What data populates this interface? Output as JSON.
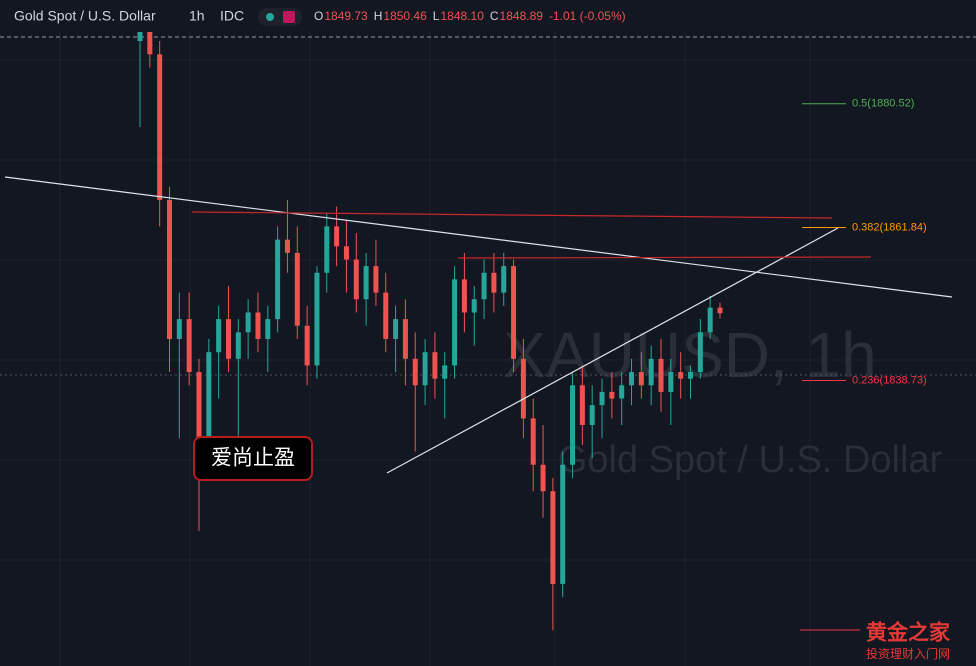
{
  "header": {
    "symbol": "Gold Spot / U.S. Dollar",
    "interval": "1h",
    "source": "IDC",
    "ohlc_labels": [
      "O",
      "H",
      "L",
      "C"
    ],
    "ohlc_values": [
      "1849.73",
      "1850.46",
      "1848.10",
      "1848.89"
    ],
    "change": "-1.01 (-0.05%)"
  },
  "watermark": {
    "ticker": "XAUUSD, 1h",
    "description": "Gold Spot / U.S. Dollar"
  },
  "annotation": "爱尚止盈",
  "logo": {
    "title": "黄金之家",
    "subtitle": "投资理财入门网"
  },
  "chart_data": {
    "type": "candlestick",
    "ylim": [
      1795.6,
      1896.2
    ],
    "up_color": "#26a69a",
    "down_color": "#ef5350",
    "candles": [
      [
        1890,
        1896,
        1877,
        1892
      ],
      [
        1892,
        1895,
        1886,
        1888
      ],
      [
        1888,
        1890,
        1862,
        1866
      ],
      [
        1866,
        1868,
        1840,
        1845
      ],
      [
        1845,
        1852,
        1830,
        1848
      ],
      [
        1848,
        1852,
        1838,
        1840
      ],
      [
        1840,
        1842,
        1816,
        1830
      ],
      [
        1830,
        1845,
        1826,
        1843
      ],
      [
        1843,
        1850,
        1836,
        1848
      ],
      [
        1848,
        1853,
        1840,
        1842
      ],
      [
        1842,
        1848,
        1830,
        1846
      ],
      [
        1846,
        1851,
        1842,
        1849
      ],
      [
        1849,
        1852,
        1843,
        1845
      ],
      [
        1845,
        1850,
        1840,
        1848
      ],
      [
        1848,
        1862,
        1846,
        1860
      ],
      [
        1860,
        1866,
        1855,
        1858
      ],
      [
        1858,
        1862,
        1845,
        1847
      ],
      [
        1847,
        1850,
        1838,
        1841
      ],
      [
        1841,
        1856,
        1839,
        1855
      ],
      [
        1855,
        1864,
        1852,
        1862
      ],
      [
        1862,
        1865,
        1856,
        1859
      ],
      [
        1859,
        1863,
        1852,
        1857
      ],
      [
        1857,
        1861,
        1849,
        1851
      ],
      [
        1851,
        1858,
        1847,
        1856
      ],
      [
        1856,
        1860,
        1850,
        1852
      ],
      [
        1852,
        1855,
        1843,
        1845
      ],
      [
        1845,
        1850,
        1840,
        1848
      ],
      [
        1848,
        1851,
        1838,
        1842
      ],
      [
        1842,
        1846,
        1828,
        1838
      ],
      [
        1838,
        1845,
        1835,
        1843
      ],
      [
        1843,
        1846,
        1836,
        1839
      ],
      [
        1839,
        1843,
        1833,
        1841
      ],
      [
        1841,
        1856,
        1839,
        1854
      ],
      [
        1854,
        1858,
        1846,
        1849
      ],
      [
        1849,
        1853,
        1844,
        1851
      ],
      [
        1851,
        1857,
        1848,
        1855
      ],
      [
        1855,
        1858,
        1849,
        1852
      ],
      [
        1852,
        1858,
        1850,
        1856
      ],
      [
        1856,
        1857,
        1840,
        1842
      ],
      [
        1842,
        1845,
        1830,
        1833
      ],
      [
        1833,
        1836,
        1822,
        1826
      ],
      [
        1826,
        1832,
        1818,
        1822
      ],
      [
        1822,
        1824,
        1801,
        1808
      ],
      [
        1808,
        1828,
        1806,
        1826
      ],
      [
        1826,
        1840,
        1824,
        1838
      ],
      [
        1838,
        1841,
        1829,
        1832
      ],
      [
        1832,
        1838,
        1827,
        1835
      ],
      [
        1835,
        1839,
        1830,
        1837
      ],
      [
        1837,
        1840,
        1833,
        1836
      ],
      [
        1836,
        1840,
        1832,
        1838
      ],
      [
        1838,
        1842,
        1835,
        1840
      ],
      [
        1840,
        1843,
        1836,
        1838
      ],
      [
        1838,
        1844,
        1835,
        1842
      ],
      [
        1842,
        1845,
        1834,
        1837
      ],
      [
        1837,
        1842,
        1832,
        1840
      ],
      [
        1840,
        1843,
        1836,
        1839
      ],
      [
        1839,
        1841,
        1836,
        1840
      ],
      [
        1840,
        1848,
        1839,
        1846
      ],
      [
        1846,
        1851.5,
        1845,
        1849.73
      ],
      [
        1849.73,
        1850.46,
        1848.1,
        1848.89
      ]
    ],
    "fib_levels": [
      {
        "label": "0.5(1880.52)",
        "price": 1880.52,
        "color": "#4caf50"
      },
      {
        "label": "0.382(1861.84)",
        "price": 1861.84,
        "color": "#ff9800"
      },
      {
        "label": "0.236(1838.73)",
        "price": 1838.73,
        "color": "#f23645"
      }
    ]
  }
}
